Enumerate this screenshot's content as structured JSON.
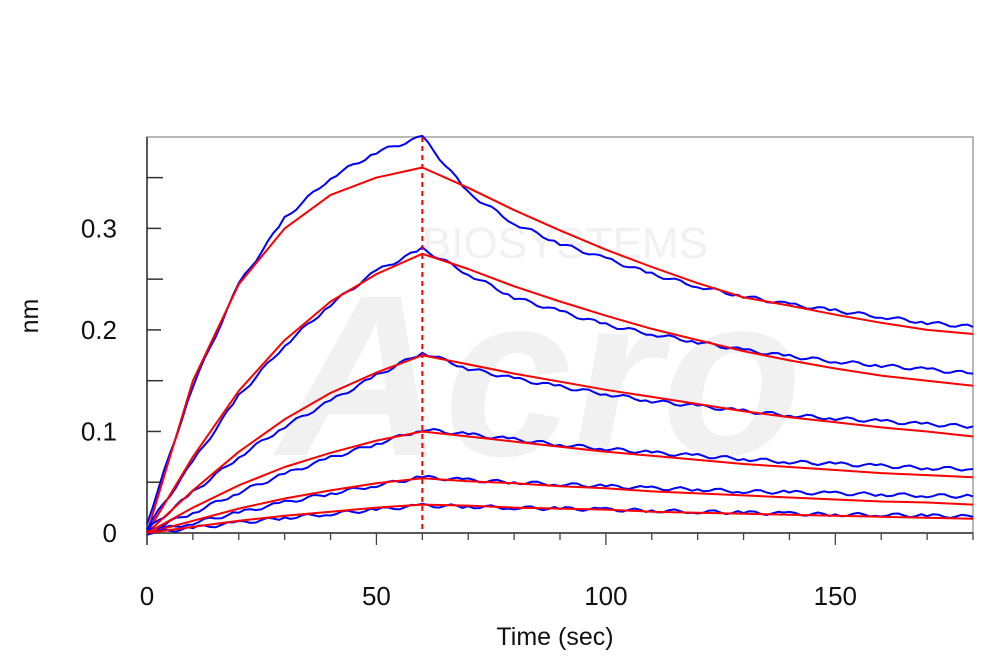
{
  "chart_data": {
    "type": "line",
    "title": "",
    "xlabel": "Time (sec)",
    "ylabel": "nm",
    "xlim": [
      0,
      180
    ],
    "ylim": [
      0,
      0.39
    ],
    "x_ticks": [
      0,
      50,
      100,
      150
    ],
    "x_tick_labels": [
      "0",
      "50",
      "100",
      "150"
    ],
    "y_ticks": [
      0,
      0.1,
      0.2,
      0.3
    ],
    "y_tick_labels": [
      "0",
      "0.1",
      "0.2",
      "0.3"
    ],
    "grid": false,
    "legend": "none",
    "association_end_line": {
      "x": 60,
      "color": "#ff0000",
      "style": "dashed"
    },
    "colors": {
      "measured": "#0000ff",
      "fit": "#ff0000"
    },
    "watermark": {
      "text_small": "BIOSYSTEMS",
      "text_large": "Acro"
    },
    "series": [
      {
        "kind": "measured",
        "x": [
          0,
          10,
          20,
          30,
          40,
          50,
          60,
          70,
          80,
          90,
          100,
          110,
          120,
          130,
          140,
          150,
          160,
          170,
          180
        ],
        "values": [
          0.01,
          0.145,
          0.245,
          0.31,
          0.35,
          0.375,
          0.39,
          0.335,
          0.305,
          0.285,
          0.27,
          0.255,
          0.243,
          0.233,
          0.225,
          0.219,
          0.213,
          0.207,
          0.203
        ]
      },
      {
        "kind": "fit",
        "x": [
          0,
          10,
          20,
          30,
          40,
          50,
          60,
          70,
          80,
          90,
          100,
          110,
          120,
          130,
          140,
          150,
          160,
          170,
          180
        ],
        "values": [
          0.0,
          0.15,
          0.245,
          0.3,
          0.333,
          0.35,
          0.36,
          0.34,
          0.318,
          0.298,
          0.279,
          0.262,
          0.246,
          0.232,
          0.224,
          0.215,
          0.207,
          0.2,
          0.196
        ]
      },
      {
        "kind": "measured",
        "x": [
          0,
          10,
          20,
          30,
          40,
          50,
          60,
          70,
          80,
          90,
          100,
          110,
          120,
          130,
          140,
          150,
          160,
          170,
          180
        ],
        "values": [
          0.005,
          0.07,
          0.135,
          0.185,
          0.225,
          0.258,
          0.28,
          0.255,
          0.232,
          0.218,
          0.205,
          0.196,
          0.188,
          0.18,
          0.174,
          0.169,
          0.165,
          0.161,
          0.157
        ]
      },
      {
        "kind": "fit",
        "x": [
          0,
          10,
          20,
          30,
          40,
          50,
          60,
          70,
          80,
          90,
          100,
          110,
          120,
          130,
          140,
          150,
          160,
          170,
          180
        ],
        "values": [
          0.0,
          0.075,
          0.14,
          0.19,
          0.228,
          0.255,
          0.275,
          0.26,
          0.243,
          0.228,
          0.214,
          0.201,
          0.19,
          0.179,
          0.17,
          0.162,
          0.155,
          0.15,
          0.145
        ]
      },
      {
        "kind": "measured",
        "x": [
          0,
          10,
          20,
          30,
          40,
          50,
          60,
          70,
          80,
          90,
          100,
          110,
          120,
          130,
          140,
          150,
          160,
          170,
          180
        ],
        "values": [
          0.003,
          0.04,
          0.075,
          0.105,
          0.13,
          0.155,
          0.178,
          0.162,
          0.152,
          0.144,
          0.137,
          0.13,
          0.125,
          0.12,
          0.116,
          0.113,
          0.11,
          0.107,
          0.105
        ]
      },
      {
        "kind": "fit",
        "x": [
          0,
          10,
          20,
          30,
          40,
          50,
          60,
          70,
          80,
          90,
          100,
          110,
          120,
          130,
          140,
          150,
          160,
          170,
          180
        ],
        "values": [
          0.0,
          0.042,
          0.08,
          0.112,
          0.138,
          0.158,
          0.175,
          0.166,
          0.157,
          0.149,
          0.141,
          0.134,
          0.127,
          0.12,
          0.114,
          0.109,
          0.104,
          0.1,
          0.095
        ]
      },
      {
        "kind": "measured",
        "x": [
          0,
          10,
          20,
          30,
          40,
          50,
          60,
          70,
          80,
          90,
          100,
          110,
          120,
          130,
          140,
          150,
          160,
          170,
          180
        ],
        "values": [
          0.002,
          0.02,
          0.04,
          0.058,
          0.074,
          0.088,
          0.102,
          0.097,
          0.092,
          0.087,
          0.083,
          0.079,
          0.076,
          0.073,
          0.07,
          0.068,
          0.066,
          0.064,
          0.063
        ]
      },
      {
        "kind": "fit",
        "x": [
          0,
          10,
          20,
          30,
          40,
          50,
          60,
          70,
          80,
          90,
          100,
          110,
          120,
          130,
          140,
          150,
          160,
          170,
          180
        ],
        "values": [
          0.0,
          0.025,
          0.047,
          0.065,
          0.079,
          0.091,
          0.1,
          0.095,
          0.09,
          0.085,
          0.08,
          0.076,
          0.072,
          0.068,
          0.065,
          0.062,
          0.059,
          0.057,
          0.055
        ]
      },
      {
        "kind": "measured",
        "x": [
          0,
          10,
          20,
          30,
          40,
          50,
          60,
          70,
          80,
          90,
          100,
          110,
          120,
          130,
          140,
          150,
          160,
          170,
          180
        ],
        "values": [
          0.001,
          0.01,
          0.02,
          0.03,
          0.039,
          0.047,
          0.055,
          0.052,
          0.05,
          0.048,
          0.046,
          0.044,
          0.043,
          0.041,
          0.04,
          0.039,
          0.038,
          0.037,
          0.036
        ]
      },
      {
        "kind": "fit",
        "x": [
          0,
          10,
          20,
          30,
          40,
          50,
          60,
          70,
          80,
          90,
          100,
          110,
          120,
          130,
          140,
          150,
          160,
          170,
          180
        ],
        "values": [
          0.0,
          0.012,
          0.024,
          0.034,
          0.042,
          0.049,
          0.054,
          0.051,
          0.049,
          0.046,
          0.044,
          0.041,
          0.039,
          0.037,
          0.035,
          0.033,
          0.031,
          0.03,
          0.028
        ]
      },
      {
        "kind": "measured",
        "x": [
          0,
          10,
          20,
          30,
          40,
          50,
          60,
          70,
          80,
          90,
          100,
          110,
          120,
          130,
          140,
          150,
          160,
          170,
          180
        ],
        "values": [
          0.0,
          0.005,
          0.01,
          0.015,
          0.019,
          0.023,
          0.027,
          0.026,
          0.025,
          0.024,
          0.023,
          0.022,
          0.021,
          0.02,
          0.019,
          0.018,
          0.018,
          0.017,
          0.016
        ]
      },
      {
        "kind": "fit",
        "x": [
          0,
          10,
          20,
          30,
          40,
          50,
          60,
          70,
          80,
          90,
          100,
          110,
          120,
          130,
          140,
          150,
          160,
          170,
          180
        ],
        "values": [
          0.0,
          0.006,
          0.012,
          0.017,
          0.021,
          0.025,
          0.028,
          0.027,
          0.025,
          0.024,
          0.023,
          0.021,
          0.02,
          0.019,
          0.018,
          0.017,
          0.016,
          0.015,
          0.014
        ]
      }
    ]
  }
}
